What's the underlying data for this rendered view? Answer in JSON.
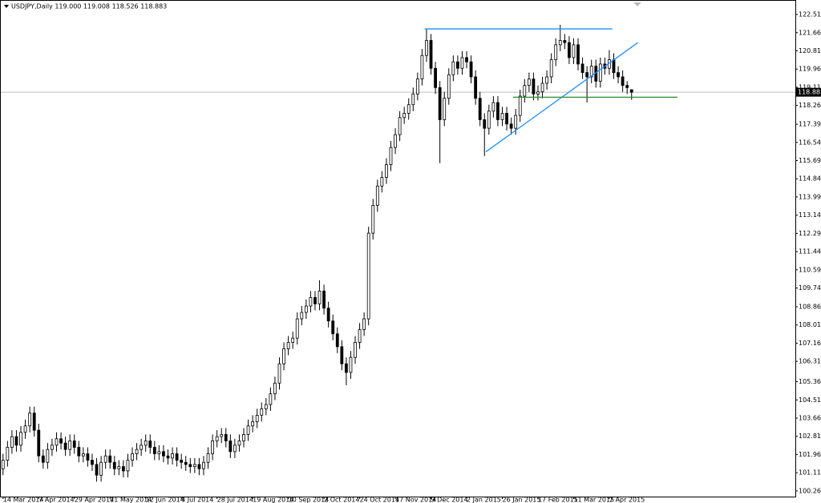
{
  "chart_data": {
    "type": "candlestick",
    "title": "USDJPY,Daily 119.000 119.008 118.526 118.883",
    "categories": [
      "14 Mar 2014",
      null,
      null,
      null,
      null,
      null,
      null,
      null,
      "7 Apr 2014",
      null,
      null,
      null,
      null,
      null,
      null,
      null,
      "29 Apr 2014",
      null,
      null,
      null,
      null,
      null,
      null,
      null,
      "21 May 2014",
      null,
      null,
      null,
      null,
      null,
      null,
      null,
      "12 Jun 2014",
      null,
      null,
      null,
      null,
      null,
      null,
      null,
      "4 Jul 2014",
      null,
      null,
      null,
      null,
      null,
      null,
      null,
      "28 Jul 2014",
      null,
      null,
      null,
      null,
      null,
      null,
      null,
      "19 Aug 2014",
      null,
      null,
      null,
      null,
      null,
      null,
      null,
      "10 Sep 2014",
      null,
      null,
      null,
      null,
      null,
      null,
      null,
      "2 Oct 2014",
      null,
      null,
      null,
      null,
      null,
      null,
      null,
      "24 Oct 2014",
      null,
      null,
      null,
      null,
      null,
      null,
      null,
      "17 Nov 2014",
      null,
      null,
      null,
      null,
      null,
      null,
      null,
      "9 Dec 2014",
      null,
      null,
      null,
      null,
      null,
      null,
      null,
      "2 Jan 2015",
      null,
      null,
      null,
      null,
      null,
      null,
      null,
      "26 Jan 2015",
      null,
      null,
      null,
      null,
      null,
      null,
      null,
      "17 Feb 2015",
      null,
      null,
      null,
      null,
      null,
      null,
      null,
      "11 Mar 2015",
      null,
      null,
      null,
      null,
      null,
      null,
      null,
      "2 Apr 2015",
      null,
      null,
      null,
      null,
      null
    ],
    "open": [
      101.3,
      101.7,
      102.3,
      102.8,
      102.4,
      103.0,
      103.3,
      103.9,
      103.1,
      101.9,
      101.6,
      102.2,
      102.4,
      102.7,
      102.5,
      102.2,
      102.6,
      102.3,
      101.9,
      102.0,
      101.7,
      101.5,
      101.0,
      101.6,
      101.9,
      101.6,
      101.3,
      101.4,
      101.2,
      101.7,
      102.0,
      102.2,
      102.4,
      102.6,
      102.3,
      102.0,
      102.1,
      101.9,
      101.8,
      102.0,
      101.7,
      101.6,
      101.5,
      101.4,
      101.5,
      101.3,
      101.6,
      102.0,
      102.6,
      102.8,
      102.9,
      102.6,
      102.1,
      102.4,
      102.6,
      102.9,
      103.3,
      103.5,
      103.8,
      104.1,
      104.3,
      104.8,
      105.3,
      106.2,
      106.9,
      107.2,
      107.4,
      108.3,
      108.6,
      108.9,
      109.3,
      109.0,
      109.6,
      108.8,
      108.2,
      107.6,
      107.0,
      106.2,
      105.8,
      106.5,
      107.2,
      107.8,
      108.3,
      112.3,
      113.6,
      114.5,
      114.9,
      115.5,
      116.3,
      116.9,
      117.7,
      117.9,
      118.3,
      118.8,
      119.5,
      120.6,
      121.3,
      120.0,
      119.1,
      117.6,
      118.6,
      119.7,
      120.3,
      120.0,
      120.5,
      120.3,
      119.6,
      118.6,
      117.6,
      117.2,
      118.0,
      118.4,
      117.6,
      117.9,
      117.4,
      117.2,
      117.8,
      118.7,
      119.2,
      119.5,
      118.8,
      118.9,
      119.3,
      119.6,
      120.4,
      121.1,
      121.3,
      121.2,
      120.5,
      121.1,
      120.2,
      119.8,
      119.6,
      120.1,
      119.4,
      120.2,
      120.0,
      120.4,
      119.8,
      119.6,
      119.2,
      119.0
    ],
    "high": [
      102.0,
      102.6,
      103.1,
      103.1,
      103.3,
      103.6,
      104.2,
      104.2,
      103.4,
      102.2,
      102.5,
      102.7,
      103.0,
      103.0,
      102.8,
      102.9,
      102.9,
      102.6,
      102.3,
      102.3,
      102.0,
      101.8,
      101.9,
      102.2,
      102.2,
      101.9,
      101.7,
      101.7,
      102.0,
      102.3,
      102.5,
      102.7,
      102.9,
      102.9,
      102.6,
      102.4,
      102.4,
      102.2,
      102.3,
      102.3,
      102.0,
      101.9,
      101.8,
      101.8,
      101.8,
      101.9,
      102.3,
      102.9,
      103.1,
      103.2,
      103.2,
      102.9,
      102.7,
      102.9,
      103.2,
      103.6,
      103.8,
      104.1,
      104.4,
      104.6,
      105.1,
      105.6,
      106.5,
      107.2,
      107.5,
      107.7,
      108.6,
      108.9,
      109.2,
      109.6,
      109.6,
      110.1,
      109.9,
      109.1,
      108.5,
      107.9,
      107.3,
      106.5,
      106.8,
      107.5,
      108.1,
      108.6,
      112.6,
      113.9,
      114.8,
      115.2,
      115.8,
      116.6,
      117.2,
      118.0,
      118.2,
      118.6,
      119.1,
      119.8,
      120.9,
      121.85,
      121.6,
      120.3,
      119.4,
      118.9,
      120.0,
      120.6,
      120.6,
      120.8,
      120.8,
      120.6,
      119.9,
      118.9,
      117.9,
      118.3,
      118.7,
      118.7,
      118.2,
      118.2,
      117.7,
      118.1,
      119.0,
      119.5,
      119.8,
      119.8,
      119.2,
      119.6,
      119.9,
      120.7,
      121.4,
      122.03,
      121.6,
      121.5,
      121.4,
      121.4,
      120.5,
      120.1,
      120.4,
      120.4,
      120.5,
      120.5,
      120.85,
      120.7,
      120.1,
      119.9,
      119.4,
      119.008
    ],
    "low": [
      101.0,
      101.4,
      102.0,
      102.1,
      102.1,
      102.7,
      103.0,
      102.8,
      101.6,
      101.3,
      101.3,
      101.9,
      102.1,
      102.2,
      101.9,
      101.9,
      102.0,
      101.6,
      101.6,
      101.4,
      101.2,
      100.7,
      100.7,
      101.3,
      101.3,
      101.0,
      101.0,
      100.9,
      100.9,
      101.4,
      101.7,
      101.9,
      102.1,
      102.0,
      101.7,
      101.7,
      101.6,
      101.5,
      101.5,
      101.4,
      101.3,
      101.2,
      101.1,
      101.1,
      101.0,
      101.0,
      101.3,
      101.7,
      102.3,
      102.5,
      102.3,
      101.8,
      101.8,
      102.1,
      102.3,
      102.6,
      103.0,
      103.2,
      103.5,
      103.8,
      104.0,
      104.5,
      105.0,
      105.9,
      106.6,
      106.9,
      107.1,
      108.0,
      108.3,
      108.6,
      108.7,
      108.7,
      108.5,
      107.9,
      107.3,
      106.7,
      105.9,
      105.2,
      105.5,
      106.2,
      106.9,
      107.5,
      108.0,
      112.0,
      113.3,
      114.2,
      114.6,
      115.2,
      116.0,
      116.6,
      117.4,
      117.6,
      118.0,
      118.5,
      119.2,
      120.3,
      119.7,
      118.8,
      115.57,
      117.3,
      118.3,
      119.4,
      119.7,
      119.7,
      120.0,
      119.3,
      118.3,
      117.3,
      115.9,
      116.9,
      117.7,
      117.3,
      117.3,
      117.1,
      116.9,
      116.9,
      117.5,
      118.4,
      118.9,
      118.5,
      118.5,
      118.6,
      119.0,
      119.3,
      120.1,
      120.8,
      120.9,
      120.2,
      120.2,
      119.9,
      119.5,
      118.4,
      119.3,
      119.1,
      119.1,
      119.7,
      119.7,
      119.5,
      119.3,
      118.9,
      118.8,
      118.526
    ],
    "close": [
      101.7,
      102.3,
      102.8,
      102.4,
      103.0,
      103.3,
      103.9,
      103.1,
      101.9,
      101.6,
      102.2,
      102.4,
      102.7,
      102.5,
      102.2,
      102.6,
      102.3,
      101.9,
      102.0,
      101.7,
      101.5,
      101.0,
      101.6,
      101.9,
      101.6,
      101.3,
      101.4,
      101.2,
      101.7,
      102.0,
      102.2,
      102.4,
      102.6,
      102.3,
      102.0,
      102.1,
      101.9,
      101.8,
      102.0,
      101.7,
      101.6,
      101.5,
      101.4,
      101.5,
      101.3,
      101.6,
      102.0,
      102.6,
      102.8,
      102.9,
      102.6,
      102.1,
      102.4,
      102.6,
      102.9,
      103.3,
      103.5,
      103.8,
      104.1,
      104.3,
      104.8,
      105.3,
      106.2,
      106.9,
      107.2,
      107.4,
      108.3,
      108.6,
      108.9,
      109.3,
      109.0,
      109.6,
      108.8,
      108.2,
      107.6,
      107.0,
      106.2,
      105.8,
      106.5,
      107.2,
      107.8,
      108.3,
      112.3,
      113.6,
      114.5,
      114.9,
      115.5,
      116.3,
      116.9,
      117.7,
      117.9,
      118.3,
      118.8,
      119.5,
      120.6,
      121.3,
      120.0,
      119.1,
      117.6,
      118.6,
      119.7,
      120.3,
      120.0,
      120.5,
      120.3,
      119.6,
      118.6,
      117.6,
      117.2,
      118.0,
      118.4,
      117.6,
      117.9,
      117.4,
      117.2,
      117.8,
      118.7,
      119.2,
      119.5,
      118.8,
      118.9,
      119.3,
      119.6,
      120.4,
      121.1,
      121.3,
      121.2,
      120.5,
      121.1,
      120.2,
      119.8,
      119.6,
      120.1,
      119.4,
      120.2,
      120.0,
      120.4,
      119.8,
      119.6,
      119.2,
      119.1,
      118.883
    ],
    "last_price": 118.883,
    "trendlines": [
      {
        "color": "#1e90ff",
        "x": [
          94.6,
          136.7
        ],
        "y": [
          121.84,
          121.84
        ]
      },
      {
        "color": "#1e90ff",
        "x": [
          108.3,
          142.4
        ],
        "y": [
          116.1,
          121.2
        ]
      },
      {
        "color": "#2e8b2e",
        "x": [
          114.4,
          151.3
        ],
        "y": [
          118.65,
          118.65
        ]
      }
    ],
    "ylim": [
      100.0,
      122.89
    ],
    "yticks": [
      100.265,
      101.115,
      101.965,
      102.815,
      103.665,
      104.515,
      105.365,
      106.315,
      107.165,
      108.015,
      108.865,
      {
        "value": 109.74,
        "label": "109.740"
      },
      {
        "value": 110.59,
        "label": "110.590"
      },
      {
        "value": 111.44,
        "label": "111.440"
      },
      {
        "value": 112.29,
        "label": "112.290"
      },
      {
        "value": 113.14,
        "label": "113.140"
      },
      {
        "value": 113.99,
        "label": "113.990"
      },
      {
        "value": 114.84,
        "label": "114.840"
      },
      {
        "value": 115.69,
        "label": "115.690"
      },
      {
        "value": 116.54,
        "label": "116.540"
      },
      {
        "value": 117.39,
        "label": "117.390"
      },
      118.265,
      119.115,
      119.965,
      120.815,
      121.665,
      122.515
    ],
    "bull_color": "#ffffff",
    "bear_color": "#000000",
    "wick_color": "#000000"
  }
}
